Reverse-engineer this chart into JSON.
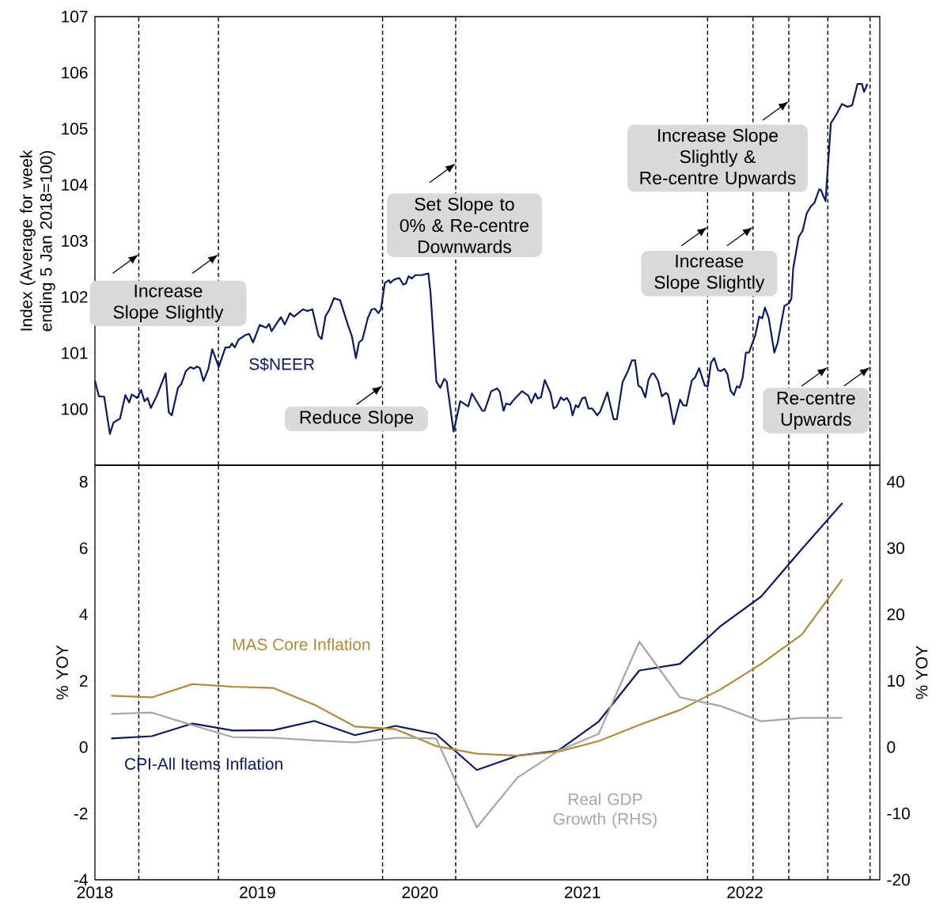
{
  "chart_data": [
    {
      "type": "line",
      "ylabel": "Index (Average for week ending 5 Jan 2018=100)",
      "xlim": [
        2018,
        2022.83
      ],
      "ylim": [
        99,
        107
      ],
      "yticks": [
        100,
        101,
        102,
        103,
        104,
        105,
        106,
        107
      ],
      "tick_labels": "y",
      "series": [
        {
          "name": "S$NEER",
          "color": "#0d1a5c",
          "x": [
            2018.0,
            2018.024,
            2018.057,
            2018.092,
            2018.114,
            2018.154,
            2018.187,
            2018.211,
            2018.227,
            2018.26,
            2018.284,
            2018.305,
            2018.324,
            2018.344,
            2018.381,
            2018.435,
            2018.454,
            2018.473,
            2018.511,
            2018.532,
            2018.56,
            2018.587,
            2018.608,
            2018.629,
            2018.646,
            2018.668,
            2018.698,
            2018.722,
            2018.762,
            2018.803,
            2018.827,
            2018.843,
            2018.86,
            2018.884,
            2018.925,
            2018.949,
            2018.973,
            2019.014,
            2019.054,
            2019.071,
            2019.087,
            2019.144,
            2019.168,
            2019.2,
            2019.225,
            2019.281,
            2019.306,
            2019.338,
            2019.376,
            2019.395,
            2019.419,
            2019.444,
            2019.471,
            2019.509,
            2019.557,
            2019.582,
            2019.606,
            2019.625,
            2019.646,
            2019.679,
            2019.703,
            2019.723,
            2019.744,
            2019.76,
            2019.784,
            2019.809,
            2019.817,
            2019.841,
            2019.873,
            2019.898,
            2019.914,
            2019.93,
            2019.95,
            2019.971,
            2020.011,
            2020.052,
            2020.065,
            2020.084,
            2020.101,
            2020.125,
            2020.15,
            2020.165,
            2020.207,
            2020.248,
            2020.297,
            2020.32,
            2020.384,
            2020.398,
            2020.439,
            2020.475,
            2020.491,
            2020.515,
            2020.53,
            2020.554,
            2020.579,
            2020.628,
            2020.667,
            2020.686,
            2020.71,
            2020.725,
            2020.745,
            2020.768,
            2020.803,
            2020.823,
            2020.842,
            2020.867,
            2020.885,
            2020.905,
            2020.924,
            2020.939,
            2020.959,
            2020.974,
            2020.998,
            2021.017,
            2021.037,
            2021.06,
            2021.091,
            2021.11,
            2021.153,
            2021.192,
            2021.212,
            2021.247,
            2021.28,
            2021.305,
            2021.324,
            2021.344,
            2021.363,
            2021.387,
            2021.406,
            2021.426,
            2021.441,
            2021.465,
            2021.489,
            2021.514,
            2021.528,
            2021.562,
            2021.601,
            2021.62,
            2021.64,
            2021.673,
            2021.694,
            2021.718,
            2021.753,
            2021.772,
            2021.791,
            2021.811,
            2021.835,
            2021.854,
            2021.873,
            2021.893,
            2021.912,
            2021.932,
            2021.951,
            2021.967,
            2021.986,
            2022.006,
            2022.025,
            2022.064,
            2022.088,
            2022.107,
            2022.123,
            2022.146,
            2022.181,
            2022.201,
            2022.243,
            2022.272,
            2022.286,
            2022.297,
            2022.331,
            2022.355,
            2022.38,
            2022.404,
            2022.428,
            2022.457,
            2022.467,
            2022.496,
            2022.529,
            2022.56,
            2022.597,
            2022.631,
            2022.66,
            2022.693,
            2022.72,
            2022.733,
            2022.754
          ],
          "values": [
            100.51,
            100.23,
            100.22,
            99.56,
            99.76,
            99.83,
            100.25,
            100.12,
            100.26,
            100.2,
            100.34,
            100.14,
            100.2,
            100.02,
            100.24,
            100.64,
            99.95,
            99.89,
            100.38,
            100.45,
            100.68,
            100.75,
            100.72,
            100.76,
            100.73,
            100.5,
            100.72,
            101.07,
            100.75,
            101.1,
            101.1,
            101.17,
            101.1,
            101.24,
            101.32,
            101.34,
            101.19,
            101.5,
            101.45,
            101.52,
            101.39,
            101.64,
            101.51,
            101.71,
            101.65,
            101.78,
            101.75,
            101.78,
            101.31,
            101.25,
            101.66,
            101.78,
            101.98,
            101.94,
            101.5,
            101.29,
            100.91,
            101.19,
            101.24,
            101.62,
            101.78,
            101.79,
            101.71,
            101.78,
            102.25,
            102.3,
            102.25,
            102.31,
            102.34,
            102.22,
            102.24,
            102.37,
            102.33,
            102.39,
            102.39,
            102.42,
            102.08,
            101.24,
            100.49,
            100.38,
            100.54,
            100.49,
            99.6,
            100.14,
            100.05,
            100.28,
            99.97,
            99.97,
            100.32,
            100.37,
            100.31,
            99.97,
            100.1,
            100.08,
            100.17,
            100.32,
            100.24,
            100.11,
            100.28,
            100.19,
            100.21,
            100.52,
            100.29,
            100.01,
            100.05,
            100.21,
            100.16,
            100.2,
            100.1,
            99.89,
            100.07,
            100.03,
            100.19,
            100.21,
            100.01,
            100.01,
            99.89,
            99.96,
            100.3,
            99.82,
            99.82,
            100.48,
            100.68,
            100.87,
            100.87,
            100.42,
            100.38,
            100.21,
            100.52,
            100.63,
            100.63,
            100.51,
            100.23,
            100.29,
            100.25,
            99.73,
            100.17,
            100.07,
            100.06,
            100.51,
            100.57,
            100.73,
            100.42,
            100.41,
            100.83,
            100.91,
            100.69,
            100.68,
            100.72,
            100.62,
            100.33,
            100.25,
            100.41,
            100.38,
            100.56,
            101.01,
            101.01,
            101.32,
            101.65,
            101.62,
            101.81,
            101.63,
            101.01,
            101.18,
            101.84,
            101.89,
            101.97,
            102.51,
            103.07,
            103.18,
            103.49,
            103.61,
            103.68,
            103.92,
            103.91,
            103.71,
            105.1,
            105.24,
            105.44,
            105.39,
            105.42,
            105.8,
            105.8,
            105.66,
            105.8
          ]
        }
      ],
      "ref_lines": [
        {
          "axis": "x",
          "value": 2018.27,
          "color": "#000000",
          "line_style": "dashed"
        },
        {
          "axis": "x",
          "value": 2018.76,
          "color": "#000000",
          "line_style": "dashed"
        },
        {
          "axis": "x",
          "value": 2019.77,
          "color": "#000000",
          "line_style": "dashed"
        },
        {
          "axis": "x",
          "value": 2020.22,
          "color": "#000000",
          "line_style": "dashed"
        },
        {
          "axis": "x",
          "value": 2021.77,
          "color": "#000000",
          "line_style": "dashed"
        },
        {
          "axis": "x",
          "value": 2022.05,
          "color": "#000000",
          "line_style": "dashed"
        },
        {
          "axis": "x",
          "value": 2022.27,
          "color": "#000000",
          "line_style": "dashed"
        },
        {
          "axis": "x",
          "value": 2022.51,
          "color": "#000000",
          "line_style": "dashed"
        },
        {
          "axis": "x",
          "value": 2022.77,
          "color": "#000000",
          "line_style": "dashed"
        }
      ],
      "annotations": [
        {
          "text": "Increase Slope Slightly",
          "x": 2018.27,
          "y": 102.76
        },
        {
          "text": "Reduce Slope",
          "x": 2019.77,
          "y": 100.42
        },
        {
          "text": "Set Slope to 0% & Re-centre Downwards",
          "x": 2020.22,
          "y": 104.38
        },
        {
          "text": "Increase Slope Slightly & Re-centre Upwards",
          "x": 2022.27,
          "y": 105.49
        },
        {
          "text": "Increase Slope Slightly",
          "x": 2021.77,
          "y": 103.25
        },
        {
          "text": "Re-centre Upwards",
          "x": 2022.51,
          "y": 100.75
        }
      ]
    },
    {
      "type": "line",
      "ylabel": "% YOY",
      "y2label": "% YOY",
      "xlim": [
        2018,
        2022.83
      ],
      "xticks": [
        2018,
        2019,
        2020,
        2021,
        2022
      ],
      "ylim": [
        -4,
        8.5
      ],
      "yticks": [
        -4,
        -2,
        0,
        2,
        4,
        6,
        8
      ],
      "y2lim": [
        -20,
        42.5
      ],
      "y2ticks": [
        -20,
        -10,
        0,
        10,
        20,
        30,
        40
      ],
      "x": [
        2018.1,
        2018.35,
        2018.6,
        2018.85,
        2019.1,
        2019.35,
        2019.6,
        2019.85,
        2020.1,
        2020.35,
        2020.6,
        2020.85,
        2021.1,
        2021.35,
        2021.6,
        2021.85,
        2022.1,
        2022.35,
        2022.6
      ],
      "series": [
        {
          "name": "CPI-All Items Inflation",
          "color": "#0d1a5c",
          "values": [
            0.26,
            0.33,
            0.71,
            0.5,
            0.51,
            0.79,
            0.36,
            0.64,
            0.39,
            -0.69,
            -0.26,
            -0.11,
            0.77,
            2.31,
            2.51,
            3.65,
            4.54,
            5.97,
            7.36
          ]
        },
        {
          "name": "MAS Core Inflation",
          "color": "#b08a3c",
          "values": [
            1.55,
            1.5,
            1.9,
            1.82,
            1.78,
            1.28,
            0.62,
            0.54,
            0.03,
            -0.2,
            -0.26,
            -0.14,
            0.18,
            0.67,
            1.12,
            1.74,
            2.51,
            3.39,
            5.06
          ]
        },
        {
          "name": "Real GDP Growth (RHS)",
          "color": "#a6a6a6",
          "axis": "y2",
          "values": [
            5.0,
            5.2,
            3.3,
            1.5,
            1.4,
            1.0,
            0.7,
            1.4,
            1.3,
            -12.1,
            -4.6,
            -0.6,
            2.0,
            15.9,
            7.5,
            6.2,
            3.9,
            4.4,
            4.4
          ]
        }
      ],
      "ref_lines": [
        {
          "axis": "x",
          "value": 2018.27,
          "color": "#000000",
          "line_style": "dashed"
        },
        {
          "axis": "x",
          "value": 2018.76,
          "color": "#000000",
          "line_style": "dashed"
        },
        {
          "axis": "x",
          "value": 2019.77,
          "color": "#000000",
          "line_style": "dashed"
        },
        {
          "axis": "x",
          "value": 2020.22,
          "color": "#000000",
          "line_style": "dashed"
        },
        {
          "axis": "x",
          "value": 2021.77,
          "color": "#000000",
          "line_style": "dashed"
        },
        {
          "axis": "x",
          "value": 2022.05,
          "color": "#000000",
          "line_style": "dashed"
        },
        {
          "axis": "x",
          "value": 2022.27,
          "color": "#000000",
          "line_style": "dashed"
        },
        {
          "axis": "x",
          "value": 2022.51,
          "color": "#000000",
          "line_style": "dashed"
        },
        {
          "axis": "x",
          "value": 2022.77,
          "color": "#000000",
          "line_style": "dashed"
        }
      ]
    }
  ]
}
